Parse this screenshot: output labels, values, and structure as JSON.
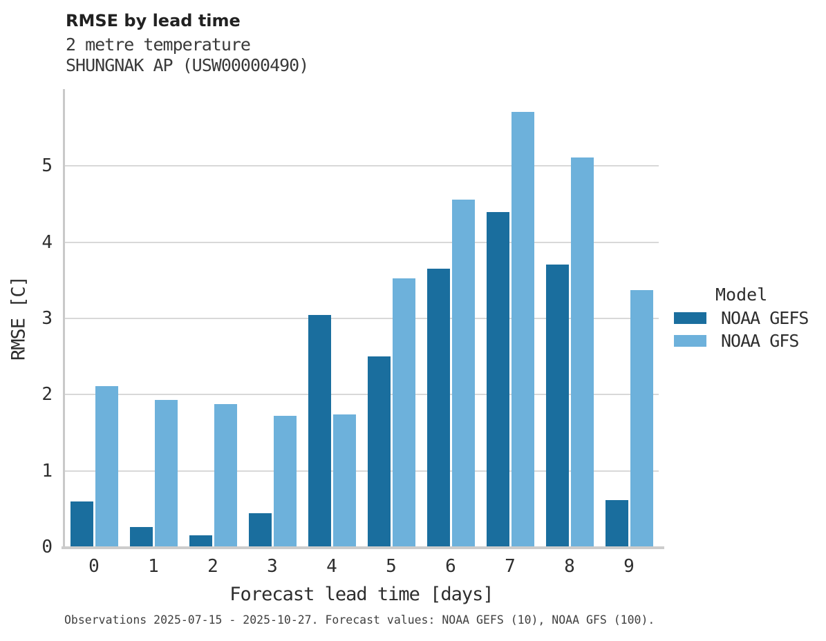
{
  "header": {
    "title": "RMSE by lead time",
    "subtitle_line1": "2 metre temperature",
    "subtitle_line2": "SHUNGNAK AP (USW00000490)"
  },
  "legend": {
    "title": "Model"
  },
  "caption": "Observations 2025-07-15 - 2025-10-27. Forecast values: NOAA GEFS (10), NOAA GFS (100).",
  "chart_data": {
    "type": "bar",
    "title": "RMSE by lead time",
    "subtitle": "2 metre temperature",
    "station": "SHUNGNAK AP (USW00000490)",
    "categories": [
      "0",
      "1",
      "2",
      "3",
      "4",
      "5",
      "6",
      "7",
      "8",
      "9"
    ],
    "series": [
      {
        "name": "NOAA GEFS",
        "color": "#1a6e9e",
        "values": [
          0.6,
          0.26,
          0.15,
          0.44,
          3.05,
          2.5,
          3.65,
          4.4,
          3.71,
          0.62
        ]
      },
      {
        "name": "NOAA GFS",
        "color": "#6db1db",
        "values": [
          2.11,
          1.93,
          1.88,
          1.72,
          1.74,
          3.53,
          4.56,
          5.71,
          5.11,
          3.37
        ]
      }
    ],
    "xlabel": "Forecast lead time [days]",
    "ylabel": "RMSE [C]",
    "ylim": [
      0,
      6
    ],
    "yticks": [
      0,
      1,
      2,
      3,
      4,
      5
    ],
    "grid": "horizontal",
    "legend_position": "right",
    "legend_title": "Model"
  }
}
